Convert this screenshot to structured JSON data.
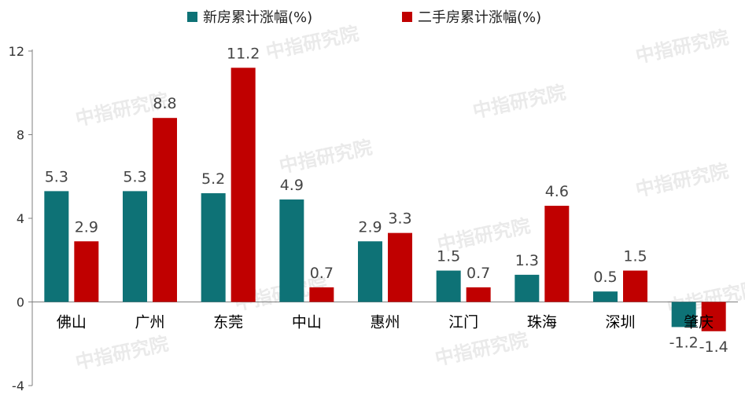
{
  "chart_data": {
    "type": "bar",
    "title": "",
    "xlabel": "",
    "ylabel": "",
    "categories": [
      "佛山",
      "广州",
      "东莞",
      "中山",
      "惠州",
      "江门",
      "珠海",
      "深圳",
      "肇庆"
    ],
    "series": [
      {
        "name": "新房累计涨幅(%)",
        "color": "#0e7276",
        "values": [
          5.3,
          5.3,
          5.2,
          4.9,
          2.9,
          1.5,
          1.3,
          0.5,
          -1.2
        ]
      },
      {
        "name": "二手房累计涨幅(%)",
        "color": "#c00000",
        "values": [
          2.9,
          8.8,
          11.2,
          0.7,
          3.3,
          0.7,
          4.6,
          1.5,
          -1.4
        ]
      }
    ],
    "ylim": [
      -4,
      12
    ],
    "yticks": [
      -4,
      0,
      4,
      8,
      12
    ],
    "legend_position": "top-center",
    "grid": false,
    "watermark": "中指研究院"
  }
}
